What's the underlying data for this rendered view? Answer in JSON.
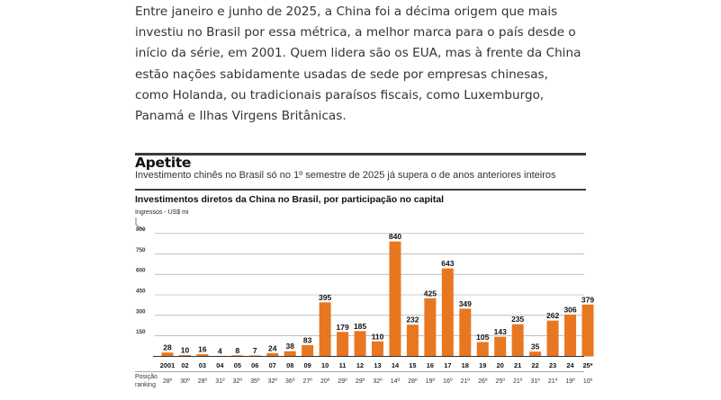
{
  "article": {
    "paragraph": "Entre janeiro e junho de 2025, a China foi a décima origem que mais investiu no Brasil por essa métrica, a melhor marca para o país desde o início da série, em 2001. Quem lidera são os EUA, mas à frente da China estão nações sabidamente usadas de sede por empresas chinesas, como Holanda, ou tradicionais paraísos fiscais, como Luxemburgo, Panamá e Ilhas Virgens Britânicas."
  },
  "chart_data": {
    "type": "bar",
    "title": "Apetite",
    "subtitle": "Investimento chinês no Brasil só no 1º semestre de 2025 já supera o de anos anteriores inteiros",
    "heading": "Investimentos diretos da China no Brasil, por participação no capital",
    "ylabel": "Ingressos - US$ mi",
    "xlabel": "",
    "ylim": [
      0,
      900
    ],
    "yticks": [
      0,
      150,
      300,
      450,
      600,
      750,
      900
    ],
    "ytick_labels": [
      "",
      "150",
      "300",
      "450",
      "600",
      "750",
      "900"
    ],
    "grid": true,
    "bar_color": "#e87722",
    "categories": [
      "2001",
      "02",
      "03",
      "04",
      "05",
      "06",
      "07",
      "08",
      "09",
      "10",
      "11",
      "12",
      "13",
      "14",
      "15",
      "16",
      "17",
      "18",
      "19",
      "20",
      "21",
      "22",
      "23",
      "24",
      "25*"
    ],
    "values": [
      28,
      10,
      16,
      4,
      8,
      7,
      24,
      38,
      83,
      395,
      179,
      185,
      110,
      840,
      232,
      425,
      643,
      349,
      105,
      143,
      235,
      35,
      262,
      306,
      379
    ],
    "ranking_label": "Posição\nranking",
    "ranking": [
      "28º",
      "30º",
      "28º",
      "31º",
      "32º",
      "35º",
      "32º",
      "36º",
      "27º",
      "20º",
      "29º",
      "29º",
      "32º",
      "14º",
      "28º",
      "19º",
      "16º",
      "21º",
      "26º",
      "25º",
      "21º",
      "31º",
      "21º",
      "19º",
      "10º"
    ]
  }
}
